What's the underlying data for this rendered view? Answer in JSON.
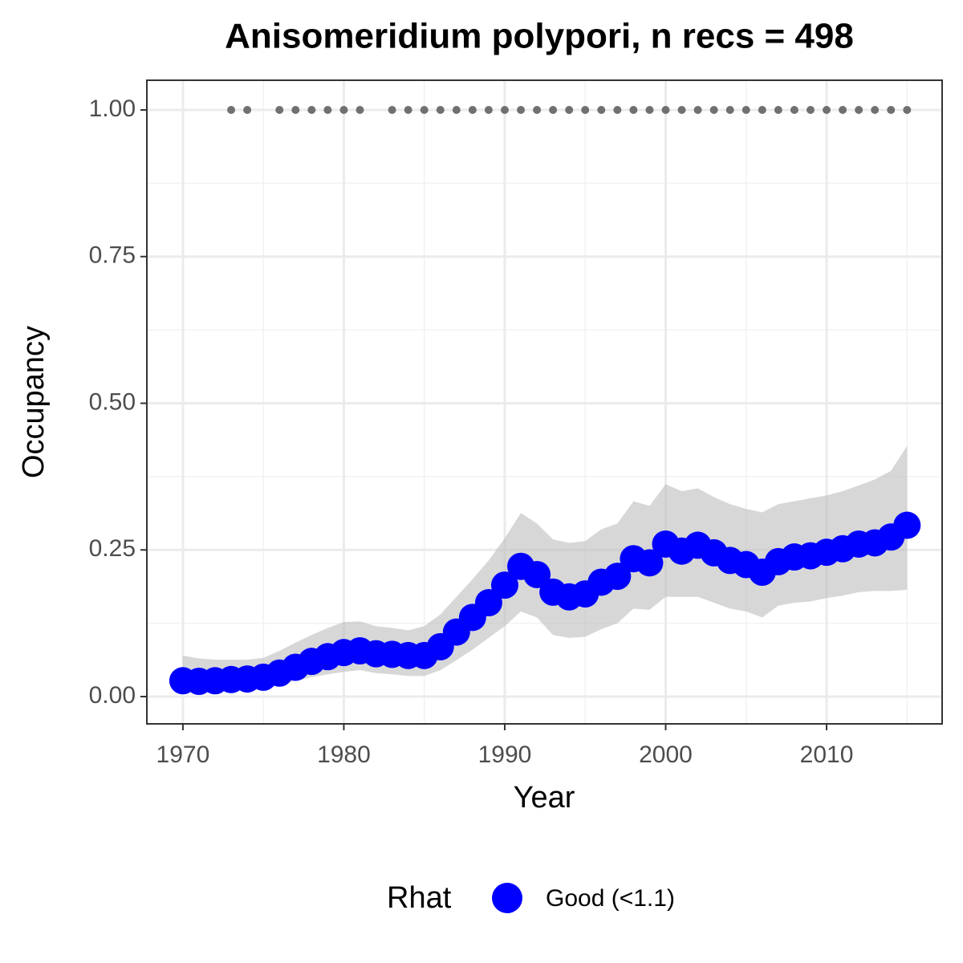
{
  "chart_data": {
    "type": "line",
    "title": "Anisomeridium polypori, n recs = 498",
    "x_label": "Year",
    "y_label": "Occupancy",
    "legend_title": "Rhat",
    "x": [
      1970,
      1971,
      1972,
      1973,
      1974,
      1975,
      1976,
      1977,
      1978,
      1979,
      1980,
      1981,
      1982,
      1983,
      1984,
      1985,
      1986,
      1987,
      1988,
      1989,
      1990,
      1991,
      1992,
      1993,
      1994,
      1995,
      1996,
      1997,
      1998,
      1999,
      2000,
      2001,
      2002,
      2003,
      2004,
      2005,
      2006,
      2007,
      2008,
      2009,
      2010,
      2011,
      2012,
      2013,
      2014,
      2015
    ],
    "series": [
      {
        "name": "Good (<1.1)",
        "color": "#0000ff",
        "band_color": "#bdbdbd",
        "values": [
          0.027,
          0.026,
          0.027,
          0.029,
          0.03,
          0.033,
          0.04,
          0.05,
          0.06,
          0.068,
          0.075,
          0.078,
          0.073,
          0.072,
          0.07,
          0.07,
          0.085,
          0.11,
          0.135,
          0.16,
          0.19,
          0.222,
          0.208,
          0.178,
          0.17,
          0.175,
          0.195,
          0.205,
          0.235,
          0.228,
          0.26,
          0.248,
          0.258,
          0.245,
          0.232,
          0.225,
          0.212,
          0.23,
          0.238,
          0.24,
          0.246,
          0.252,
          0.26,
          0.262,
          0.272,
          0.292
        ],
        "upper": [
          0.07,
          0.065,
          0.063,
          0.063,
          0.063,
          0.066,
          0.078,
          0.092,
          0.105,
          0.117,
          0.127,
          0.128,
          0.12,
          0.117,
          0.113,
          0.12,
          0.14,
          0.17,
          0.2,
          0.232,
          0.27,
          0.313,
          0.295,
          0.268,
          0.262,
          0.265,
          0.285,
          0.295,
          0.333,
          0.325,
          0.362,
          0.35,
          0.355,
          0.34,
          0.328,
          0.32,
          0.314,
          0.328,
          0.333,
          0.338,
          0.343,
          0.35,
          0.36,
          0.37,
          0.385,
          0.427
        ],
        "lower": [
          0.01,
          0.01,
          0.011,
          0.013,
          0.014,
          0.016,
          0.02,
          0.027,
          0.033,
          0.038,
          0.042,
          0.045,
          0.04,
          0.038,
          0.035,
          0.035,
          0.045,
          0.062,
          0.08,
          0.1,
          0.12,
          0.145,
          0.135,
          0.105,
          0.1,
          0.102,
          0.115,
          0.125,
          0.15,
          0.148,
          0.17,
          0.17,
          0.17,
          0.16,
          0.15,
          0.145,
          0.135,
          0.155,
          0.16,
          0.162,
          0.168,
          0.172,
          0.178,
          0.18,
          0.18,
          0.182
        ]
      }
    ],
    "records": {
      "color": "#707070",
      "x": [
        1973,
        1974,
        1976,
        1977,
        1978,
        1979,
        1980,
        1981,
        1983,
        1984,
        1985,
        1986,
        1987,
        1988,
        1989,
        1990,
        1991,
        1992,
        1993,
        1994,
        1995,
        1996,
        1997,
        1998,
        1999,
        2000,
        2001,
        2002,
        2003,
        2004,
        2005,
        2006,
        2007,
        2008,
        2009,
        2010,
        2011,
        2012,
        2013,
        2014,
        2015
      ],
      "values": [
        1,
        1,
        1,
        1,
        1,
        1,
        1,
        1,
        1,
        1,
        1,
        1,
        1,
        1,
        1,
        1,
        1,
        1,
        1,
        1,
        1,
        1,
        1,
        1,
        1,
        1,
        1,
        1,
        1,
        1,
        1,
        1,
        1,
        1,
        1,
        1,
        1,
        1,
        1,
        1,
        1
      ]
    },
    "xlim": [
      1967.76,
      2017.18
    ],
    "ylim": [
      -0.0465,
      1.0506
    ],
    "xticks": [
      1970,
      1980,
      1990,
      2000,
      2010
    ],
    "yticks": [
      {
        "value": 0,
        "label": "0.00"
      },
      {
        "value": 0.25,
        "label": "0.25"
      },
      {
        "value": 0.5,
        "label": "0.50"
      },
      {
        "value": 0.75,
        "label": "0.75"
      },
      {
        "value": 1,
        "label": "1.00"
      }
    ],
    "grid": true,
    "legend_position": "bottom"
  }
}
